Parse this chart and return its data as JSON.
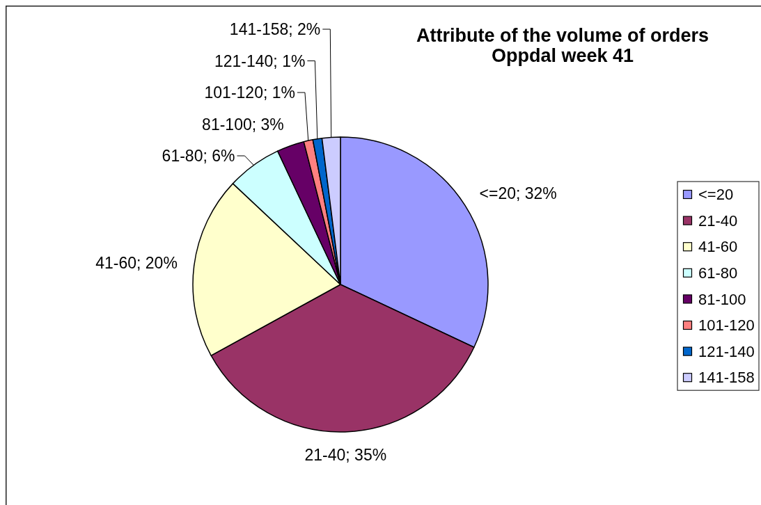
{
  "chart_data": {
    "type": "pie",
    "title": "Attribute of the volume of orders",
    "subtitle": "Oppdal week 41",
    "categories": [
      "<=20",
      "21-40",
      "41-60",
      "61-80",
      "81-100",
      "101-120",
      "121-140",
      "141-158"
    ],
    "values": [
      32,
      35,
      20,
      6,
      3,
      1,
      1,
      2
    ],
    "colors": [
      "#9999ff",
      "#993366",
      "#ffffcc",
      "#ccffff",
      "#660066",
      "#ff8080",
      "#0066cc",
      "#ccccff"
    ],
    "value_labels": [
      "<=20; 32%",
      "21-40; 35%",
      "41-60; 20%",
      "61-80; 6%",
      "81-100; 3%",
      "101-120; 1%",
      "121-140; 1%",
      "141-158; 2%"
    ],
    "legend": "right"
  }
}
